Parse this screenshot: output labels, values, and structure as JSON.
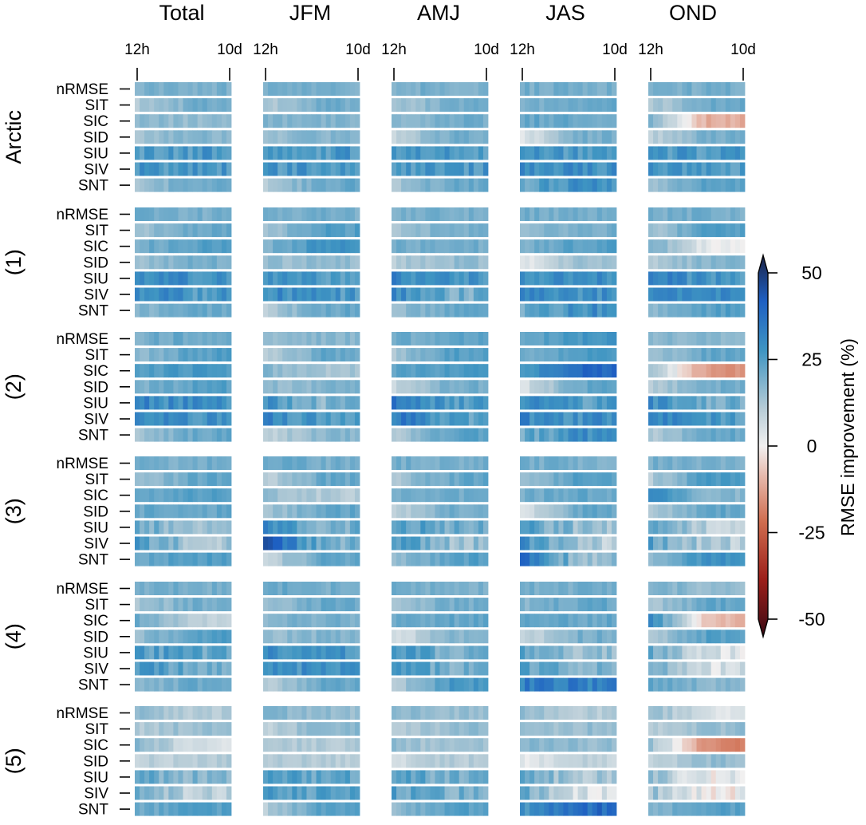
{
  "chart_data": {
    "type": "heatmap",
    "columns": [
      "Total",
      "JFM",
      "AMJ",
      "JAS",
      "OND"
    ],
    "x_tick_labels": [
      "12h",
      "10d"
    ],
    "regions": [
      "Arctic",
      "(1)",
      "(2)",
      "(3)",
      "(4)",
      "(5)"
    ],
    "variables": [
      "nRMSE",
      "SIT",
      "SIC",
      "SID",
      "SIU",
      "SIV",
      "SNT"
    ],
    "lead_times": 20,
    "colorbar": {
      "label": "RMSE improvement (%)",
      "ticks": [
        50,
        25,
        0,
        -25,
        -50
      ],
      "range": [
        -50,
        50
      ],
      "extend": "both"
    },
    "value_profiles_note_free": true,
    "profiles": {
      "Arctic": {
        "Total": [
          [
            18,
            18
          ],
          [
            10,
            18
          ],
          [
            16,
            14
          ],
          [
            12,
            16
          ],
          [
            24,
            24
          ],
          [
            24,
            24
          ],
          [
            12,
            20
          ]
        ],
        "JFM": [
          [
            18,
            18
          ],
          [
            10,
            18
          ],
          [
            16,
            16
          ],
          [
            14,
            16
          ],
          [
            24,
            24
          ],
          [
            24,
            24
          ],
          [
            10,
            20
          ]
        ],
        "AMJ": [
          [
            18,
            18
          ],
          [
            12,
            18
          ],
          [
            16,
            18
          ],
          [
            8,
            18
          ],
          [
            24,
            24
          ],
          [
            24,
            24
          ],
          [
            12,
            20
          ]
        ],
        "JAS": [
          [
            18,
            18
          ],
          [
            16,
            20
          ],
          [
            20,
            20
          ],
          [
            2,
            18
          ],
          [
            24,
            24
          ],
          [
            26,
            26
          ],
          [
            20,
            26
          ]
        ],
        "OND": [
          [
            18,
            18
          ],
          [
            10,
            20
          ],
          [
            16,
            -10
          ],
          [
            8,
            18
          ],
          [
            24,
            24
          ],
          [
            24,
            24
          ],
          [
            12,
            22
          ]
        ]
      },
      "(1)": {
        "Total": [
          [
            18,
            18
          ],
          [
            12,
            20
          ],
          [
            18,
            22
          ],
          [
            12,
            18
          ],
          [
            28,
            26
          ],
          [
            28,
            24
          ],
          [
            16,
            20
          ]
        ],
        "JFM": [
          [
            18,
            18
          ],
          [
            12,
            22
          ],
          [
            16,
            26
          ],
          [
            14,
            14
          ],
          [
            28,
            22
          ],
          [
            28,
            24
          ],
          [
            10,
            20
          ]
        ],
        "AMJ": [
          [
            18,
            18
          ],
          [
            12,
            18
          ],
          [
            18,
            18
          ],
          [
            10,
            14
          ],
          [
            28,
            24
          ],
          [
            28,
            18
          ],
          [
            14,
            20
          ]
        ],
        "JAS": [
          [
            18,
            18
          ],
          [
            14,
            18
          ],
          [
            18,
            22
          ],
          [
            2,
            14
          ],
          [
            26,
            26
          ],
          [
            28,
            26
          ],
          [
            20,
            26
          ]
        ],
        "OND": [
          [
            18,
            18
          ],
          [
            12,
            22
          ],
          [
            18,
            2
          ],
          [
            10,
            16
          ],
          [
            30,
            24
          ],
          [
            30,
            28
          ],
          [
            14,
            22
          ]
        ]
      },
      "(2)": {
        "Total": [
          [
            18,
            20
          ],
          [
            14,
            22
          ],
          [
            22,
            24
          ],
          [
            16,
            22
          ],
          [
            28,
            26
          ],
          [
            30,
            26
          ],
          [
            12,
            20
          ]
        ],
        "JFM": [
          [
            14,
            16
          ],
          [
            8,
            20
          ],
          [
            16,
            12
          ],
          [
            14,
            16
          ],
          [
            26,
            16
          ],
          [
            28,
            22
          ],
          [
            8,
            16
          ]
        ],
        "AMJ": [
          [
            18,
            20
          ],
          [
            12,
            22
          ],
          [
            20,
            24
          ],
          [
            8,
            18
          ],
          [
            34,
            22
          ],
          [
            32,
            22
          ],
          [
            10,
            22
          ]
        ],
        "JAS": [
          [
            20,
            24
          ],
          [
            18,
            24
          ],
          [
            24,
            36
          ],
          [
            4,
            20
          ],
          [
            28,
            22
          ],
          [
            28,
            26
          ],
          [
            18,
            26
          ]
        ],
        "OND": [
          [
            16,
            16
          ],
          [
            12,
            20
          ],
          [
            14,
            -14
          ],
          [
            10,
            18
          ],
          [
            28,
            18
          ],
          [
            30,
            24
          ],
          [
            10,
            20
          ]
        ]
      },
      "(3)": {
        "Total": [
          [
            18,
            18
          ],
          [
            12,
            20
          ],
          [
            20,
            22
          ],
          [
            20,
            20
          ],
          [
            20,
            12
          ],
          [
            22,
            12
          ],
          [
            20,
            22
          ]
        ],
        "JFM": [
          [
            20,
            18
          ],
          [
            8,
            20
          ],
          [
            14,
            10
          ],
          [
            12,
            20
          ],
          [
            30,
            18
          ],
          [
            38,
            18
          ],
          [
            8,
            20
          ]
        ],
        "AMJ": [
          [
            18,
            18
          ],
          [
            12,
            20
          ],
          [
            18,
            18
          ],
          [
            8,
            18
          ],
          [
            24,
            18
          ],
          [
            26,
            14
          ],
          [
            14,
            22
          ]
        ],
        "JAS": [
          [
            18,
            18
          ],
          [
            14,
            22
          ],
          [
            18,
            20
          ],
          [
            4,
            20
          ],
          [
            22,
            14
          ],
          [
            26,
            10
          ],
          [
            34,
            14
          ]
        ],
        "OND": [
          [
            18,
            18
          ],
          [
            10,
            24
          ],
          [
            30,
            16
          ],
          [
            10,
            20
          ],
          [
            22,
            10
          ],
          [
            22,
            10
          ],
          [
            16,
            26
          ]
        ]
      },
      "(4)": {
        "Total": [
          [
            18,
            18
          ],
          [
            12,
            18
          ],
          [
            20,
            8
          ],
          [
            14,
            22
          ],
          [
            24,
            20
          ],
          [
            24,
            20
          ],
          [
            14,
            20
          ]
        ],
        "JFM": [
          [
            20,
            18
          ],
          [
            12,
            20
          ],
          [
            16,
            18
          ],
          [
            14,
            16
          ],
          [
            26,
            24
          ],
          [
            26,
            26
          ],
          [
            10,
            20
          ]
        ],
        "AMJ": [
          [
            18,
            18
          ],
          [
            12,
            18
          ],
          [
            18,
            20
          ],
          [
            4,
            16
          ],
          [
            24,
            18
          ],
          [
            24,
            18
          ],
          [
            10,
            24
          ]
        ],
        "JAS": [
          [
            18,
            18
          ],
          [
            16,
            20
          ],
          [
            20,
            20
          ],
          [
            6,
            18
          ],
          [
            22,
            14
          ],
          [
            22,
            16
          ],
          [
            30,
            30
          ]
        ],
        "OND": [
          [
            18,
            14
          ],
          [
            12,
            20
          ],
          [
            28,
            -8
          ],
          [
            10,
            22
          ],
          [
            20,
            4
          ],
          [
            22,
            4
          ],
          [
            20,
            16
          ]
        ]
      },
      "(5)": {
        "Total": [
          [
            14,
            10
          ],
          [
            10,
            14
          ],
          [
            16,
            4
          ],
          [
            8,
            10
          ],
          [
            20,
            16
          ],
          [
            20,
            8
          ],
          [
            18,
            22
          ]
        ],
        "JFM": [
          [
            16,
            14
          ],
          [
            8,
            16
          ],
          [
            12,
            10
          ],
          [
            10,
            10
          ],
          [
            24,
            20
          ],
          [
            24,
            22
          ],
          [
            10,
            22
          ]
        ],
        "AMJ": [
          [
            16,
            14
          ],
          [
            10,
            14
          ],
          [
            14,
            12
          ],
          [
            6,
            10
          ],
          [
            22,
            18
          ],
          [
            22,
            18
          ],
          [
            14,
            22
          ]
        ],
        "JAS": [
          [
            14,
            10
          ],
          [
            12,
            14
          ],
          [
            16,
            14
          ],
          [
            2,
            8
          ],
          [
            18,
            12
          ],
          [
            20,
            4
          ],
          [
            24,
            34
          ]
        ],
        "OND": [
          [
            14,
            4
          ],
          [
            10,
            14
          ],
          [
            14,
            -16
          ],
          [
            8,
            14
          ],
          [
            14,
            2
          ],
          [
            14,
            0
          ],
          [
            16,
            22
          ]
        ]
      }
    }
  }
}
